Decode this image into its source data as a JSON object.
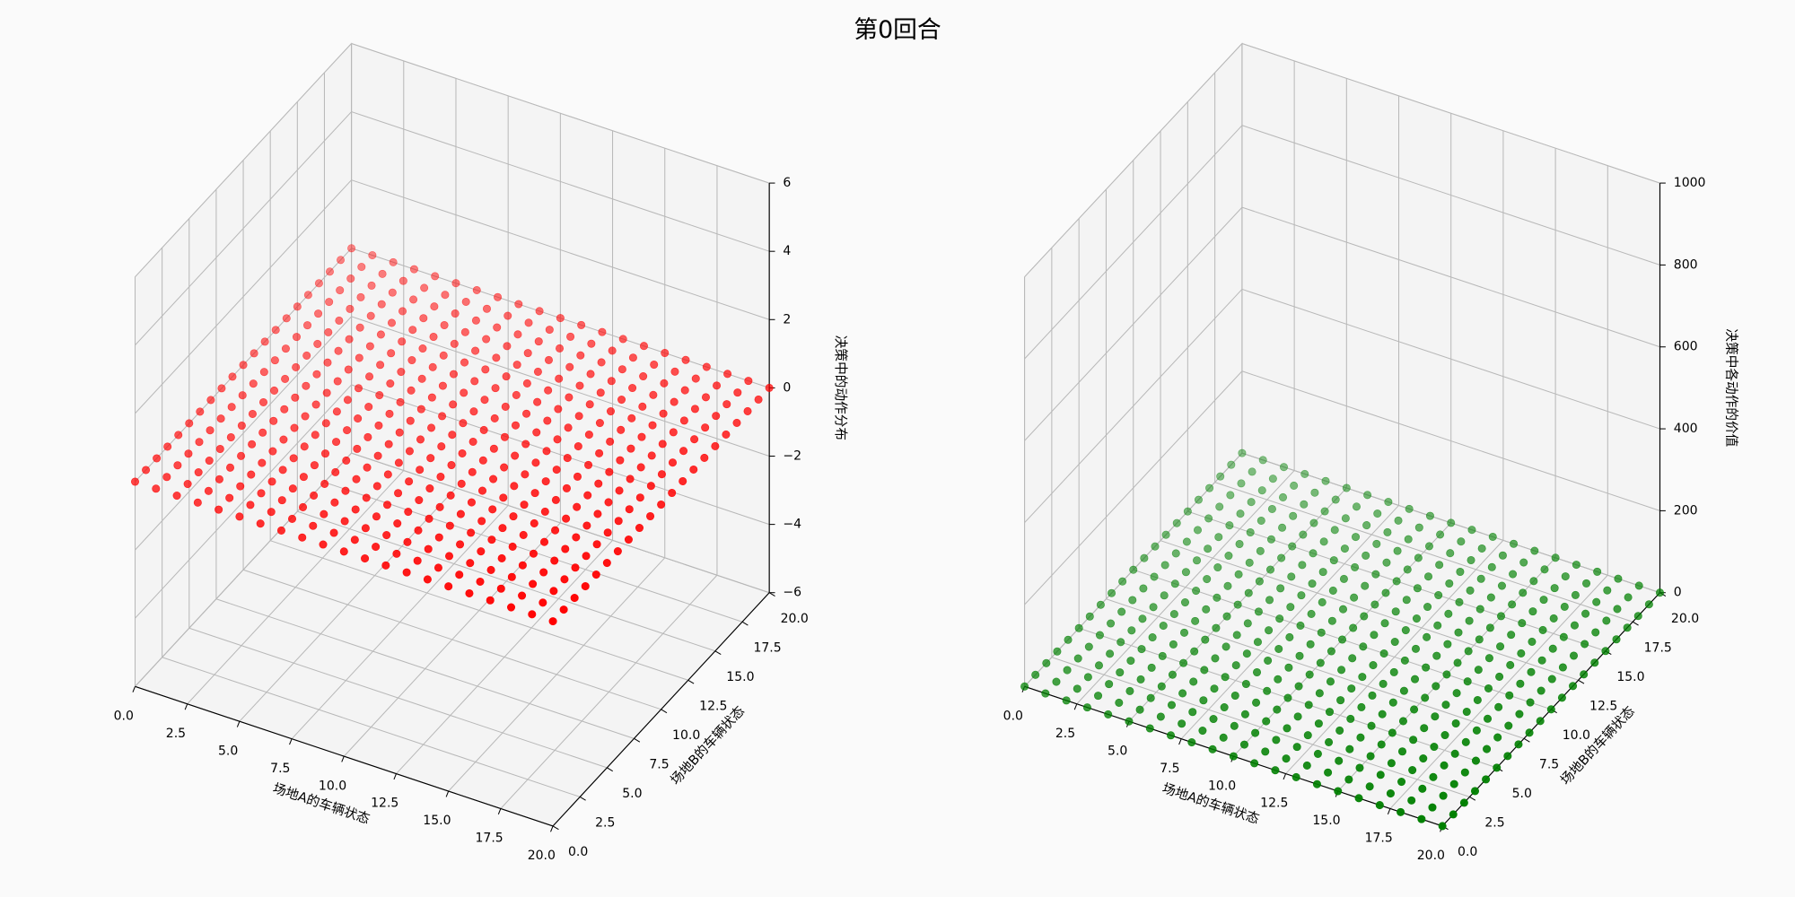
{
  "title": "第0回合",
  "chart_data": [
    {
      "type": "scatter3d",
      "color": "#ff0000",
      "xlabel": "场地A的车辆状态",
      "ylabel": "场地B的车辆状态",
      "zlabel": "决策中的动作分布",
      "x": [
        0,
        1,
        2,
        3,
        4,
        5,
        6,
        7,
        8,
        9,
        10,
        11,
        12,
        13,
        14,
        15,
        16,
        17,
        18,
        19,
        20
      ],
      "y": [
        0,
        1,
        2,
        3,
        4,
        5,
        6,
        7,
        8,
        9,
        10,
        11,
        12,
        13,
        14,
        15,
        16,
        17,
        18,
        19,
        20
      ],
      "z": [
        [
          0,
          0,
          0,
          0,
          0,
          0,
          0,
          0,
          0,
          0,
          0,
          0,
          0,
          0,
          0,
          0,
          0,
          0,
          0,
          0,
          0
        ],
        [
          0,
          0,
          0,
          0,
          0,
          0,
          0,
          0,
          0,
          0,
          0,
          0,
          0,
          0,
          0,
          0,
          0,
          0,
          0,
          0,
          0
        ],
        [
          0,
          0,
          0,
          0,
          0,
          0,
          0,
          0,
          0,
          0,
          0,
          0,
          0,
          0,
          0,
          0,
          0,
          0,
          0,
          0,
          0
        ],
        [
          0,
          0,
          0,
          0,
          0,
          0,
          0,
          0,
          0,
          0,
          0,
          0,
          0,
          0,
          0,
          0,
          0,
          0,
          0,
          0,
          0
        ],
        [
          0,
          0,
          0,
          0,
          0,
          0,
          0,
          0,
          0,
          0,
          0,
          0,
          0,
          0,
          0,
          0,
          0,
          0,
          0,
          0,
          0
        ],
        [
          0,
          0,
          0,
          0,
          0,
          0,
          0,
          0,
          0,
          0,
          0,
          0,
          0,
          0,
          0,
          0,
          0,
          0,
          0,
          0,
          0
        ],
        [
          0,
          0,
          0,
          0,
          0,
          0,
          0,
          0,
          0,
          0,
          0,
          0,
          0,
          0,
          0,
          0,
          0,
          0,
          0,
          0,
          0
        ],
        [
          0,
          0,
          0,
          0,
          0,
          0,
          0,
          0,
          0,
          0,
          0,
          0,
          0,
          0,
          0,
          0,
          0,
          0,
          0,
          0,
          0
        ],
        [
          0,
          0,
          0,
          0,
          0,
          0,
          0,
          0,
          0,
          0,
          0,
          0,
          0,
          0,
          0,
          0,
          0,
          0,
          0,
          0,
          0
        ],
        [
          0,
          0,
          0,
          0,
          0,
          0,
          0,
          0,
          0,
          0,
          0,
          0,
          0,
          0,
          0,
          0,
          0,
          0,
          0,
          0,
          0
        ],
        [
          0,
          0,
          0,
          0,
          0,
          0,
          0,
          0,
          0,
          0,
          0,
          0,
          0,
          0,
          0,
          0,
          0,
          0,
          0,
          0,
          0
        ],
        [
          0,
          0,
          0,
          0,
          0,
          0,
          0,
          0,
          0,
          0,
          0,
          0,
          0,
          0,
          0,
          0,
          0,
          0,
          0,
          0,
          0
        ],
        [
          0,
          0,
          0,
          0,
          0,
          0,
          0,
          0,
          0,
          0,
          0,
          0,
          0,
          0,
          0,
          0,
          0,
          0,
          0,
          0,
          0
        ],
        [
          0,
          0,
          0,
          0,
          0,
          0,
          0,
          0,
          0,
          0,
          0,
          0,
          0,
          0,
          0,
          0,
          0,
          0,
          0,
          0,
          0
        ],
        [
          0,
          0,
          0,
          0,
          0,
          0,
          0,
          0,
          0,
          0,
          0,
          0,
          0,
          0,
          0,
          0,
          0,
          0,
          0,
          0,
          0
        ],
        [
          0,
          0,
          0,
          0,
          0,
          0,
          0,
          0,
          0,
          0,
          0,
          0,
          0,
          0,
          0,
          0,
          0,
          0,
          0,
          0,
          0
        ],
        [
          0,
          0,
          0,
          0,
          0,
          0,
          0,
          0,
          0,
          0,
          0,
          0,
          0,
          0,
          0,
          0,
          0,
          0,
          0,
          0,
          0
        ],
        [
          0,
          0,
          0,
          0,
          0,
          0,
          0,
          0,
          0,
          0,
          0,
          0,
          0,
          0,
          0,
          0,
          0,
          0,
          0,
          0,
          0
        ],
        [
          0,
          0,
          0,
          0,
          0,
          0,
          0,
          0,
          0,
          0,
          0,
          0,
          0,
          0,
          0,
          0,
          0,
          0,
          0,
          0,
          0
        ],
        [
          0,
          0,
          0,
          0,
          0,
          0,
          0,
          0,
          0,
          0,
          0,
          0,
          0,
          0,
          0,
          0,
          0,
          0,
          0,
          0,
          0
        ],
        [
          0,
          0,
          0,
          0,
          0,
          0,
          0,
          0,
          0,
          0,
          0,
          0,
          0,
          0,
          0,
          0,
          0,
          0,
          0,
          0,
          0
        ]
      ],
      "xlim": [
        0,
        20
      ],
      "ylim": [
        0,
        20
      ],
      "zlim": [
        -6,
        6
      ],
      "xticks": [
        {
          "value": 0,
          "label": "0.0"
        },
        2.5,
        {
          "value": 5,
          "label": "5.0"
        },
        7.5,
        {
          "value": 10,
          "label": "10.0"
        },
        12.5,
        {
          "value": 15,
          "label": "15.0"
        },
        17.5,
        {
          "value": 20,
          "label": "20.0"
        }
      ],
      "yticks": [
        {
          "value": 0,
          "label": "0.0"
        },
        2.5,
        {
          "value": 5,
          "label": "5.0"
        },
        7.5,
        {
          "value": 10,
          "label": "10.0"
        },
        12.5,
        {
          "value": 15,
          "label": "15.0"
        },
        17.5,
        {
          "value": 20,
          "label": "20.0"
        }
      ],
      "zticks": [
        {
          "value": -6,
          "label": "−6"
        },
        {
          "value": -4,
          "label": "−4"
        },
        {
          "value": -2,
          "label": "−2"
        },
        0,
        2,
        4,
        6
      ],
      "grid": true
    },
    {
      "type": "scatter3d",
      "color": "#008000",
      "xlabel": "场地A的车辆状态",
      "ylabel": "场地B的车辆状态",
      "zlabel": "决策中各动作的价值",
      "x": [
        0,
        1,
        2,
        3,
        4,
        5,
        6,
        7,
        8,
        9,
        10,
        11,
        12,
        13,
        14,
        15,
        16,
        17,
        18,
        19,
        20
      ],
      "y": [
        0,
        1,
        2,
        3,
        4,
        5,
        6,
        7,
        8,
        9,
        10,
        11,
        12,
        13,
        14,
        15,
        16,
        17,
        18,
        19,
        20
      ],
      "z": [
        [
          0,
          0,
          0,
          0,
          0,
          0,
          0,
          0,
          0,
          0,
          0,
          0,
          0,
          0,
          0,
          0,
          0,
          0,
          0,
          0,
          0
        ],
        [
          0,
          0,
          0,
          0,
          0,
          0,
          0,
          0,
          0,
          0,
          0,
          0,
          0,
          0,
          0,
          0,
          0,
          0,
          0,
          0,
          0
        ],
        [
          0,
          0,
          0,
          0,
          0,
          0,
          0,
          0,
          0,
          0,
          0,
          0,
          0,
          0,
          0,
          0,
          0,
          0,
          0,
          0,
          0
        ],
        [
          0,
          0,
          0,
          0,
          0,
          0,
          0,
          0,
          0,
          0,
          0,
          0,
          0,
          0,
          0,
          0,
          0,
          0,
          0,
          0,
          0
        ],
        [
          0,
          0,
          0,
          0,
          0,
          0,
          0,
          0,
          0,
          0,
          0,
          0,
          0,
          0,
          0,
          0,
          0,
          0,
          0,
          0,
          0
        ],
        [
          0,
          0,
          0,
          0,
          0,
          0,
          0,
          0,
          0,
          0,
          0,
          0,
          0,
          0,
          0,
          0,
          0,
          0,
          0,
          0,
          0
        ],
        [
          0,
          0,
          0,
          0,
          0,
          0,
          0,
          0,
          0,
          0,
          0,
          0,
          0,
          0,
          0,
          0,
          0,
          0,
          0,
          0,
          0
        ],
        [
          0,
          0,
          0,
          0,
          0,
          0,
          0,
          0,
          0,
          0,
          0,
          0,
          0,
          0,
          0,
          0,
          0,
          0,
          0,
          0,
          0
        ],
        [
          0,
          0,
          0,
          0,
          0,
          0,
          0,
          0,
          0,
          0,
          0,
          0,
          0,
          0,
          0,
          0,
          0,
          0,
          0,
          0,
          0
        ],
        [
          0,
          0,
          0,
          0,
          0,
          0,
          0,
          0,
          0,
          0,
          0,
          0,
          0,
          0,
          0,
          0,
          0,
          0,
          0,
          0,
          0
        ],
        [
          0,
          0,
          0,
          0,
          0,
          0,
          0,
          0,
          0,
          0,
          0,
          0,
          0,
          0,
          0,
          0,
          0,
          0,
          0,
          0,
          0
        ],
        [
          0,
          0,
          0,
          0,
          0,
          0,
          0,
          0,
          0,
          0,
          0,
          0,
          0,
          0,
          0,
          0,
          0,
          0,
          0,
          0,
          0
        ],
        [
          0,
          0,
          0,
          0,
          0,
          0,
          0,
          0,
          0,
          0,
          0,
          0,
          0,
          0,
          0,
          0,
          0,
          0,
          0,
          0,
          0
        ],
        [
          0,
          0,
          0,
          0,
          0,
          0,
          0,
          0,
          0,
          0,
          0,
          0,
          0,
          0,
          0,
          0,
          0,
          0,
          0,
          0,
          0
        ],
        [
          0,
          0,
          0,
          0,
          0,
          0,
          0,
          0,
          0,
          0,
          0,
          0,
          0,
          0,
          0,
          0,
          0,
          0,
          0,
          0,
          0
        ],
        [
          0,
          0,
          0,
          0,
          0,
          0,
          0,
          0,
          0,
          0,
          0,
          0,
          0,
          0,
          0,
          0,
          0,
          0,
          0,
          0,
          0
        ],
        [
          0,
          0,
          0,
          0,
          0,
          0,
          0,
          0,
          0,
          0,
          0,
          0,
          0,
          0,
          0,
          0,
          0,
          0,
          0,
          0,
          0
        ],
        [
          0,
          0,
          0,
          0,
          0,
          0,
          0,
          0,
          0,
          0,
          0,
          0,
          0,
          0,
          0,
          0,
          0,
          0,
          0,
          0,
          0
        ],
        [
          0,
          0,
          0,
          0,
          0,
          0,
          0,
          0,
          0,
          0,
          0,
          0,
          0,
          0,
          0,
          0,
          0,
          0,
          0,
          0,
          0
        ],
        [
          0,
          0,
          0,
          0,
          0,
          0,
          0,
          0,
          0,
          0,
          0,
          0,
          0,
          0,
          0,
          0,
          0,
          0,
          0,
          0,
          0
        ],
        [
          0,
          0,
          0,
          0,
          0,
          0,
          0,
          0,
          0,
          0,
          0,
          0,
          0,
          0,
          0,
          0,
          0,
          0,
          0,
          0,
          0
        ]
      ],
      "xlim": [
        0,
        20
      ],
      "ylim": [
        0,
        20
      ],
      "zlim": [
        0,
        1000
      ],
      "xticks": [
        {
          "value": 0,
          "label": "0.0"
        },
        2.5,
        {
          "value": 5,
          "label": "5.0"
        },
        7.5,
        {
          "value": 10,
          "label": "10.0"
        },
        12.5,
        {
          "value": 15,
          "label": "15.0"
        },
        17.5,
        {
          "value": 20,
          "label": "20.0"
        }
      ],
      "yticks": [
        {
          "value": 0,
          "label": "0.0"
        },
        2.5,
        {
          "value": 5,
          "label": "5.0"
        },
        7.5,
        {
          "value": 10,
          "label": "10.0"
        },
        12.5,
        {
          "value": 15,
          "label": "15.0"
        },
        17.5,
        {
          "value": 20,
          "label": "20.0"
        }
      ],
      "zticks": [
        0,
        200,
        400,
        600,
        800,
        1000
      ],
      "grid": true
    }
  ]
}
